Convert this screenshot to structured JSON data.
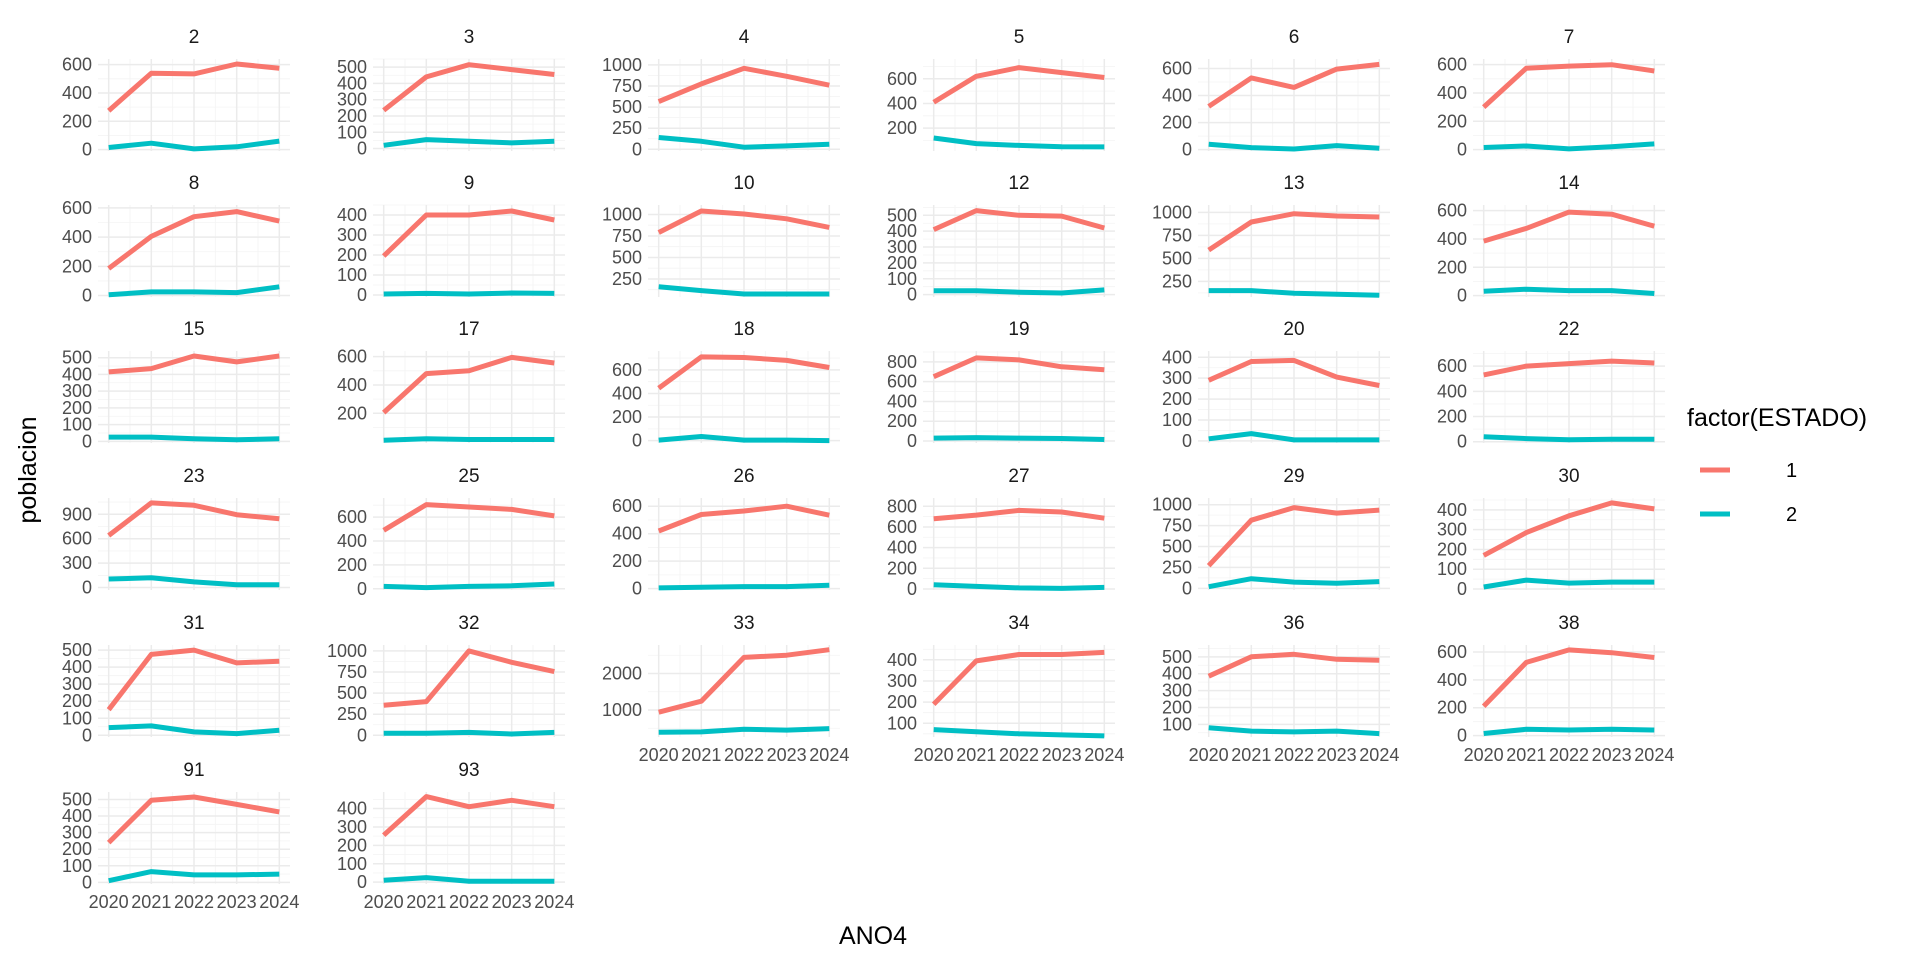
{
  "chart_data": {
    "type": "line",
    "xlabel": "ANO4",
    "ylabel": "poblacion",
    "x": [
      2020,
      2021,
      2022,
      2023,
      2024
    ],
    "x_tick_labels": [
      "2020",
      "2021",
      "2022",
      "2023",
      "2024"
    ],
    "legend": {
      "title": "factor(ESTADO)",
      "position": "right",
      "entries": [
        {
          "label": "1",
          "color": "#F8766D"
        },
        {
          "label": "2",
          "color": "#00BFC4"
        }
      ]
    },
    "grid": true,
    "facets": [
      {
        "label": "2",
        "ylim": [
          -10,
          640
        ],
        "yticks": [
          0,
          200,
          400,
          600
        ],
        "series": [
          {
            "name": "1",
            "values": [
              275,
              540,
              535,
              605,
              575
            ]
          },
          {
            "name": "2",
            "values": [
              15,
              45,
              5,
              20,
              60
            ]
          }
        ]
      },
      {
        "label": "3",
        "ylim": [
          -15,
          550
        ],
        "yticks": [
          0,
          100,
          200,
          300,
          400,
          500
        ],
        "series": [
          {
            "name": "1",
            "values": [
              235,
              440,
              515,
              485,
              455
            ]
          },
          {
            "name": "2",
            "values": [
              20,
              55,
              45,
              35,
              45
            ]
          }
        ]
      },
      {
        "label": "4",
        "ylim": [
          -20,
          1070
        ],
        "yticks": [
          0,
          250,
          500,
          750,
          1000
        ],
        "series": [
          {
            "name": "1",
            "values": [
              565,
              775,
              960,
              865,
              760
            ]
          },
          {
            "name": "2",
            "values": [
              140,
              95,
              25,
              40,
              60
            ]
          }
        ]
      },
      {
        "label": "5",
        "ylim": [
          15,
          760
        ],
        "yticks": [
          200,
          400,
          600
        ],
        "series": [
          {
            "name": "1",
            "values": [
              410,
              620,
              690,
              650,
              610
            ]
          },
          {
            "name": "2",
            "values": [
              120,
              75,
              60,
              50,
              48
            ]
          }
        ]
      },
      {
        "label": "6",
        "ylim": [
          -10,
          670
        ],
        "yticks": [
          0,
          200,
          400,
          600
        ],
        "series": [
          {
            "name": "1",
            "values": [
              320,
              530,
              460,
              595,
              630
            ]
          },
          {
            "name": "2",
            "values": [
              40,
              15,
              5,
              30,
              10
            ]
          }
        ]
      },
      {
        "label": "7",
        "ylim": [
          -10,
          640
        ],
        "yticks": [
          0,
          200,
          400,
          600
        ],
        "series": [
          {
            "name": "1",
            "values": [
              300,
              575,
              590,
              600,
              555
            ]
          },
          {
            "name": "2",
            "values": [
              15,
              25,
              5,
              20,
              40
            ]
          }
        ]
      },
      {
        "label": "8",
        "ylim": [
          -10,
          620
        ],
        "yticks": [
          0,
          200,
          400,
          600
        ],
        "series": [
          {
            "name": "1",
            "values": [
              185,
              405,
              540,
              575,
              510
            ]
          },
          {
            "name": "2",
            "values": [
              5,
              25,
              25,
              20,
              60
            ]
          }
        ]
      },
      {
        "label": "9",
        "ylim": [
          -10,
          450
        ],
        "yticks": [
          0,
          100,
          200,
          300,
          400
        ],
        "series": [
          {
            "name": "1",
            "values": [
              195,
              400,
              400,
              420,
              375
            ]
          },
          {
            "name": "2",
            "values": [
              5,
              8,
              5,
              10,
              8
            ]
          }
        ]
      },
      {
        "label": "10",
        "ylim": [
          40,
          1110
        ],
        "yticks": [
          250,
          500,
          750,
          1000
        ],
        "series": [
          {
            "name": "1",
            "values": [
              790,
              1040,
              1005,
              950,
              850
            ]
          },
          {
            "name": "2",
            "values": [
              160,
              115,
              75,
              75,
              75
            ]
          }
        ]
      },
      {
        "label": "12",
        "ylim": [
          -15,
          565
        ],
        "yticks": [
          0,
          100,
          200,
          300,
          400,
          500
        ],
        "series": [
          {
            "name": "1",
            "values": [
              410,
              530,
              500,
              495,
              420
            ]
          },
          {
            "name": "2",
            "values": [
              25,
              25,
              15,
              10,
              30
            ]
          }
        ]
      },
      {
        "label": "13",
        "ylim": [
          80,
          1080
        ],
        "yticks": [
          250,
          500,
          750,
          1000
        ],
        "series": [
          {
            "name": "1",
            "values": [
              590,
              895,
              985,
              960,
              950
            ]
          },
          {
            "name": "2",
            "values": [
              150,
              150,
              120,
              110,
              100
            ]
          }
        ]
      },
      {
        "label": "14",
        "ylim": [
          -10,
          640
        ],
        "yticks": [
          0,
          200,
          400,
          600
        ],
        "series": [
          {
            "name": "1",
            "values": [
              385,
              475,
              590,
              575,
              490
            ]
          },
          {
            "name": "2",
            "values": [
              30,
              45,
              35,
              35,
              15
            ]
          }
        ]
      },
      {
        "label": "15",
        "ylim": [
          -10,
          540
        ],
        "yticks": [
          0,
          100,
          200,
          300,
          400,
          500
        ],
        "series": [
          {
            "name": "1",
            "values": [
              415,
              435,
              510,
              475,
              510
            ]
          },
          {
            "name": "2",
            "values": [
              25,
              25,
              15,
              10,
              15
            ]
          }
        ]
      },
      {
        "label": "17",
        "ylim": [
          -10,
          640
        ],
        "yticks": [
          200,
          400,
          600
        ],
        "series": [
          {
            "name": "1",
            "values": [
              205,
              480,
              500,
              595,
              555
            ]
          },
          {
            "name": "2",
            "values": [
              10,
              20,
              15,
              15,
              15
            ]
          }
        ]
      },
      {
        "label": "18",
        "ylim": [
          -20,
          760
        ],
        "yticks": [
          0,
          200,
          400,
          600
        ],
        "series": [
          {
            "name": "1",
            "values": [
              445,
              710,
              705,
              680,
              620
            ]
          },
          {
            "name": "2",
            "values": [
              5,
              35,
              5,
              5,
              0
            ]
          }
        ]
      },
      {
        "label": "19",
        "ylim": [
          -20,
          910
        ],
        "yticks": [
          0,
          200,
          400,
          600,
          800
        ],
        "series": [
          {
            "name": "1",
            "values": [
              650,
              840,
              820,
              750,
              720
            ]
          },
          {
            "name": "2",
            "values": [
              30,
              35,
              30,
              25,
              15
            ]
          }
        ]
      },
      {
        "label": "20",
        "ylim": [
          -10,
          430
        ],
        "yticks": [
          0,
          100,
          200,
          300,
          400
        ],
        "series": [
          {
            "name": "1",
            "values": [
              290,
              380,
              385,
              305,
              265
            ]
          },
          {
            "name": "2",
            "values": [
              10,
              35,
              5,
              5,
              5
            ]
          }
        ]
      },
      {
        "label": "22",
        "ylim": [
          -10,
          720
        ],
        "yticks": [
          0,
          200,
          400,
          600
        ],
        "series": [
          {
            "name": "1",
            "values": [
              530,
              600,
              620,
              640,
              625
            ]
          },
          {
            "name": "2",
            "values": [
              40,
              25,
              15,
              20,
              20
            ]
          }
        ]
      },
      {
        "label": "23",
        "ylim": [
          -30,
          1100
        ],
        "yticks": [
          0,
          300,
          600,
          900
        ],
        "series": [
          {
            "name": "1",
            "values": [
              640,
              1040,
              1010,
              895,
              845
            ]
          },
          {
            "name": "2",
            "values": [
              105,
              120,
              70,
              35,
              35
            ]
          }
        ]
      },
      {
        "label": "25",
        "ylim": [
          -10,
          760
        ],
        "yticks": [
          0,
          200,
          400,
          600
        ],
        "series": [
          {
            "name": "1",
            "values": [
              490,
              705,
              685,
              665,
              610
            ]
          },
          {
            "name": "2",
            "values": [
              20,
              10,
              20,
              25,
              40
            ]
          }
        ]
      },
      {
        "label": "26",
        "ylim": [
          -10,
          660
        ],
        "yticks": [
          0,
          200,
          400,
          600
        ],
        "series": [
          {
            "name": "1",
            "values": [
              420,
              540,
              565,
              600,
              535
            ]
          },
          {
            "name": "2",
            "values": [
              5,
              10,
              15,
              15,
              25
            ]
          }
        ]
      },
      {
        "label": "27",
        "ylim": [
          -10,
          880
        ],
        "yticks": [
          0,
          200,
          400,
          600,
          800
        ],
        "series": [
          {
            "name": "1",
            "values": [
              680,
              715,
              760,
              745,
              685
            ]
          },
          {
            "name": "2",
            "values": [
              40,
              25,
              10,
              5,
              15
            ]
          }
        ]
      },
      {
        "label": "29",
        "ylim": [
          -20,
          1080
        ],
        "yticks": [
          0,
          250,
          500,
          750,
          1000
        ],
        "series": [
          {
            "name": "1",
            "values": [
              270,
              815,
              965,
              900,
              935
            ]
          },
          {
            "name": "2",
            "values": [
              20,
              115,
              75,
              60,
              80
            ]
          }
        ]
      },
      {
        "label": "30",
        "ylim": [
          -5,
          460
        ],
        "yticks": [
          0,
          100,
          200,
          300,
          400
        ],
        "series": [
          {
            "name": "1",
            "values": [
              170,
              285,
              370,
              435,
              405
            ]
          },
          {
            "name": "2",
            "values": [
              10,
              45,
              30,
              35,
              35
            ]
          }
        ]
      },
      {
        "label": "31",
        "ylim": [
          -10,
          530
        ],
        "yticks": [
          0,
          100,
          200,
          300,
          400,
          500
        ],
        "series": [
          {
            "name": "1",
            "values": [
              150,
              475,
              500,
              425,
              435
            ]
          },
          {
            "name": "2",
            "values": [
              45,
              55,
              20,
              10,
              30
            ]
          }
        ]
      },
      {
        "label": "32",
        "ylim": [
          -20,
          1070
        ],
        "yticks": [
          0,
          250,
          500,
          750,
          1000
        ],
        "series": [
          {
            "name": "1",
            "values": [
              355,
              400,
              1000,
              865,
              755
            ]
          },
          {
            "name": "2",
            "values": [
              25,
              25,
              35,
              15,
              35
            ]
          }
        ]
      },
      {
        "label": "33",
        "ylim": [
          260,
          2780
        ],
        "yticks": [
          1000,
          2000
        ],
        "series": [
          {
            "name": "1",
            "values": [
              940,
              1240,
              2440,
              2500,
              2650
            ]
          },
          {
            "name": "2",
            "values": [
              390,
              400,
              470,
              450,
              490
            ]
          }
        ]
      },
      {
        "label": "34",
        "ylim": [
          35,
          470
        ],
        "yticks": [
          100,
          200,
          300,
          400
        ],
        "series": [
          {
            "name": "1",
            "values": [
              190,
              395,
              425,
              425,
              435
            ]
          },
          {
            "name": "2",
            "values": [
              70,
              60,
              50,
              45,
              40
            ]
          }
        ]
      },
      {
        "label": "36",
        "ylim": [
          25,
          570
        ],
        "yticks": [
          100,
          200,
          300,
          400,
          500
        ],
        "series": [
          {
            "name": "1",
            "values": [
              385,
              500,
              515,
              485,
              480
            ]
          },
          {
            "name": "2",
            "values": [
              80,
              60,
              55,
              60,
              45
            ]
          }
        ]
      },
      {
        "label": "38",
        "ylim": [
          -10,
          650
        ],
        "yticks": [
          0,
          200,
          400,
          600
        ],
        "series": [
          {
            "name": "1",
            "values": [
              210,
              525,
              615,
              595,
              560
            ]
          },
          {
            "name": "2",
            "values": [
              15,
              45,
              40,
              45,
              40
            ]
          }
        ]
      },
      {
        "label": "91",
        "ylim": [
          -10,
          545
        ],
        "yticks": [
          0,
          100,
          200,
          300,
          400,
          500
        ],
        "series": [
          {
            "name": "1",
            "values": [
              240,
              495,
              515,
              470,
              425
            ]
          },
          {
            "name": "2",
            "values": [
              10,
              65,
              45,
              45,
              50
            ]
          }
        ]
      },
      {
        "label": "93",
        "ylim": [
          -10,
          490
        ],
        "yticks": [
          0,
          100,
          200,
          300,
          400
        ],
        "series": [
          {
            "name": "1",
            "values": [
              255,
              465,
              410,
              445,
              410
            ]
          },
          {
            "name": "2",
            "values": [
              10,
              25,
              5,
              5,
              5
            ]
          }
        ]
      }
    ]
  }
}
